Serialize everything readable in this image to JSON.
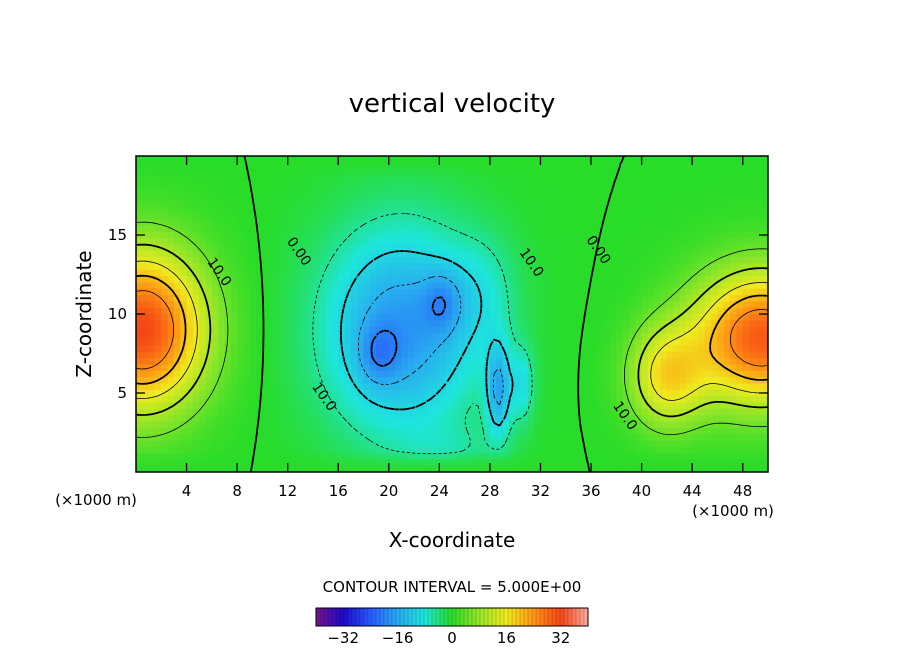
{
  "chart_data": {
    "type": "heatmap",
    "title": "vertical velocity",
    "xlabel": "X-coordinate",
    "ylabel": "Z-coordinate",
    "x_unit_note": "(×1000 m)",
    "x_unit_note_right": "(×1000 m)",
    "xlim": [
      0,
      50
    ],
    "ylim": [
      0,
      20
    ],
    "x_ticks": [
      4,
      8,
      12,
      16,
      20,
      24,
      28,
      32,
      36,
      40,
      44,
      48
    ],
    "y_ticks": [
      5,
      10,
      15
    ],
    "contour_interval_text": "CONTOUR INTERVAL = 5.000E+00",
    "colorbar_ticks": [
      "−32",
      "−16",
      "0",
      "16",
      "32"
    ],
    "colorbar_range": [
      -40,
      40
    ],
    "contour_labels": [
      {
        "text": "10.0",
        "x": 6.3,
        "z": 12.5
      },
      {
        "text": "0.00",
        "x": 12.6,
        "z": 13.8
      },
      {
        "text": "10.0",
        "x": 31.0,
        "z": 13.1
      },
      {
        "text": "0.00",
        "x": 36.3,
        "z": 13.9
      },
      {
        "text": "10.0",
        "x": 14.6,
        "z": 4.6
      },
      {
        "text": "10.0",
        "x": 38.4,
        "z": 3.4
      }
    ],
    "features": [
      {
        "kind": "updraft-max",
        "x": 1.5,
        "z": 9.0,
        "value": 30
      },
      {
        "kind": "downdraft-max",
        "x": 19.5,
        "z": 7.5,
        "value": -20
      },
      {
        "kind": "downdraft-max",
        "x": 24.0,
        "z": 10.5,
        "value": -17
      },
      {
        "kind": "downdraft-max",
        "x": 28.5,
        "z": 5.5,
        "value": -22
      },
      {
        "kind": "updraft-max",
        "x": 48.0,
        "z": 8.5,
        "value": 27
      }
    ],
    "grid": false,
    "colormap": "rainbow"
  }
}
